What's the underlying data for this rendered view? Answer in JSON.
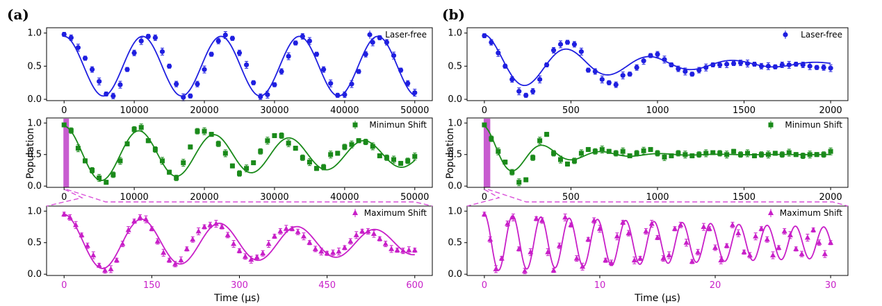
{
  "figure": {
    "panel_a": "(a)",
    "panel_b": "(b)",
    "ylabel": "Population",
    "xlabel": "Time (μs)"
  },
  "colors": {
    "blue": "#1f1fe0",
    "green": "#1a8a1a",
    "magenta": "#c81fc8",
    "highlight": "#c85cd0",
    "dash": "#d94fd9"
  },
  "chart_data": [
    {
      "type": "scatter",
      "id": "a1",
      "series": [
        {
          "name": "Laser-free",
          "marker": "circle",
          "color": "#1f1fe0",
          "x": [
            0,
            1000,
            2000,
            3000,
            4000,
            5000,
            6000,
            7000,
            8000,
            9000,
            10000,
            11000,
            12000,
            13000,
            14000,
            15000,
            16000,
            17000,
            18000,
            19000,
            20000,
            21000,
            22000,
            23000,
            24000,
            25000,
            26000,
            27000,
            28000,
            29000,
            30000,
            31000,
            32000,
            33000,
            34000,
            35000,
            36000,
            37000,
            38000,
            39000,
            40000,
            41000,
            42000,
            43000,
            44000,
            45000,
            46000,
            47000,
            48000,
            49000,
            50000
          ],
          "y": [
            0.98,
            0.93,
            0.78,
            0.62,
            0.45,
            0.27,
            0.08,
            0.05,
            0.22,
            0.45,
            0.7,
            0.88,
            0.95,
            0.93,
            0.72,
            0.5,
            0.23,
            0.03,
            0.05,
            0.23,
            0.45,
            0.68,
            0.88,
            0.97,
            0.92,
            0.7,
            0.52,
            0.25,
            0.04,
            0.07,
            0.22,
            0.42,
            0.65,
            0.85,
            0.95,
            0.88,
            0.68,
            0.45,
            0.24,
            0.06,
            0.07,
            0.23,
            0.42,
            0.68,
            0.86,
            0.93,
            0.86,
            0.66,
            0.44,
            0.24,
            0.1
          ]
        }
      ],
      "ylim": [
        -0.02,
        1.08
      ],
      "xlim": [
        -2500,
        52500
      ],
      "xticks": [
        0,
        10000,
        20000,
        30000,
        40000,
        50000
      ],
      "yticks": [
        0.0,
        0.5,
        1.0
      ],
      "ytick_labels": [
        "0.0",
        "0.5",
        "1.0"
      ],
      "xtick_labels": [
        "0",
        "10000",
        "20000",
        "30000",
        "40000",
        "50000"
      ],
      "fit": {
        "amp": 0.45,
        "offset": 0.5,
        "period": 11180,
        "decay": 0
      }
    },
    {
      "type": "scatter",
      "id": "a2",
      "series": [
        {
          "name": "Minimun Shift",
          "marker": "square",
          "color": "#1a8a1a",
          "x": [
            0,
            1000,
            2000,
            3000,
            4000,
            5000,
            6000,
            7000,
            8000,
            9000,
            10000,
            11000,
            12000,
            13000,
            14000,
            15000,
            16000,
            17000,
            18000,
            19000,
            20000,
            21000,
            22000,
            23000,
            24000,
            25000,
            26000,
            27000,
            28000,
            29000,
            30000,
            31000,
            32000,
            33000,
            34000,
            35000,
            36000,
            37000,
            38000,
            39000,
            40000,
            41000,
            42000,
            43000,
            44000,
            45000,
            46000,
            47000,
            48000,
            49000,
            50000
          ],
          "y": [
            0.97,
            0.88,
            0.6,
            0.4,
            0.25,
            0.13,
            0.06,
            0.18,
            0.4,
            0.67,
            0.9,
            0.93,
            0.72,
            0.58,
            0.4,
            0.22,
            0.13,
            0.37,
            0.62,
            0.87,
            0.87,
            0.82,
            0.67,
            0.52,
            0.32,
            0.2,
            0.28,
            0.37,
            0.55,
            0.72,
            0.8,
            0.8,
            0.68,
            0.6,
            0.45,
            0.38,
            0.28,
            0.3,
            0.5,
            0.52,
            0.62,
            0.66,
            0.72,
            0.7,
            0.63,
            0.48,
            0.45,
            0.42,
            0.36,
            0.4,
            0.47
          ]
        }
      ],
      "ylim": [
        -0.02,
        1.08
      ],
      "xlim": [
        -2500,
        52500
      ],
      "xticks": [
        0,
        10000,
        20000,
        30000,
        40000,
        50000
      ],
      "yticks": [
        0.0,
        0.5,
        1.0
      ],
      "ytick_labels": [
        "0.0",
        "0.5",
        "1.0"
      ],
      "xtick_labels": [
        "0",
        "10000",
        "20000",
        "30000",
        "40000",
        "50000"
      ],
      "fit": {
        "amp": 0.45,
        "offset": 0.5,
        "period": 10700,
        "decay": 60000
      }
    },
    {
      "type": "scatter",
      "id": "a3",
      "series": [
        {
          "name": "Maximum Shift",
          "marker": "triangle",
          "color": "#c81fc8",
          "x": [
            0,
            10,
            20,
            30,
            40,
            50,
            60,
            70,
            80,
            90,
            100,
            110,
            120,
            130,
            140,
            150,
            160,
            170,
            180,
            190,
            200,
            210,
            220,
            230,
            240,
            250,
            260,
            270,
            280,
            290,
            300,
            310,
            320,
            330,
            340,
            350,
            360,
            370,
            380,
            390,
            400,
            410,
            420,
            430,
            440,
            450,
            460,
            470,
            480,
            490,
            500,
            510,
            520,
            530,
            540,
            550,
            560,
            570,
            580,
            590,
            600
          ],
          "y": [
            0.95,
            0.9,
            0.78,
            0.62,
            0.45,
            0.3,
            0.14,
            0.06,
            0.08,
            0.22,
            0.48,
            0.7,
            0.84,
            0.9,
            0.87,
            0.72,
            0.52,
            0.34,
            0.22,
            0.16,
            0.22,
            0.4,
            0.55,
            0.68,
            0.75,
            0.78,
            0.8,
            0.75,
            0.62,
            0.48,
            0.37,
            0.28,
            0.23,
            0.27,
            0.33,
            0.48,
            0.6,
            0.68,
            0.72,
            0.72,
            0.67,
            0.6,
            0.5,
            0.4,
            0.36,
            0.33,
            0.34,
            0.36,
            0.42,
            0.52,
            0.62,
            0.68,
            0.68,
            0.64,
            0.56,
            0.48,
            0.4,
            0.38,
            0.37,
            0.38,
            0.38
          ]
        }
      ],
      "ylim": [
        -0.02,
        1.08
      ],
      "xlim": [
        -30,
        630
      ],
      "xticks": [
        0,
        150,
        300,
        450,
        600
      ],
      "yticks": [
        0.0,
        0.5,
        1.0
      ],
      "ytick_labels": [
        "0.0",
        "0.5",
        "1.0"
      ],
      "xtick_labels": [
        "0",
        "150",
        "300",
        "450",
        "600"
      ],
      "fit": {
        "amp": 0.45,
        "offset": 0.5,
        "period": 133,
        "decay": 700
      }
    },
    {
      "type": "scatter",
      "id": "b1",
      "series": [
        {
          "name": "Laser-free",
          "marker": "circle",
          "color": "#1f1fe0",
          "x": [
            0,
            40,
            80,
            120,
            160,
            200,
            240,
            280,
            320,
            360,
            400,
            440,
            480,
            520,
            560,
            600,
            640,
            680,
            720,
            760,
            800,
            840,
            880,
            920,
            960,
            1000,
            1040,
            1080,
            1120,
            1160,
            1200,
            1240,
            1280,
            1320,
            1360,
            1400,
            1440,
            1480,
            1520,
            1560,
            1600,
            1640,
            1680,
            1720,
            1760,
            1800,
            1840,
            1880,
            1920,
            1960,
            2000
          ],
          "y": [
            0.96,
            0.86,
            0.7,
            0.5,
            0.3,
            0.12,
            0.06,
            0.12,
            0.3,
            0.52,
            0.74,
            0.83,
            0.86,
            0.83,
            0.72,
            0.44,
            0.42,
            0.3,
            0.25,
            0.22,
            0.36,
            0.38,
            0.48,
            0.58,
            0.66,
            0.68,
            0.6,
            0.52,
            0.46,
            0.42,
            0.38,
            0.44,
            0.48,
            0.52,
            0.52,
            0.53,
            0.54,
            0.55,
            0.54,
            0.53,
            0.5,
            0.5,
            0.49,
            0.52,
            0.52,
            0.53,
            0.52,
            0.5,
            0.48,
            0.48,
            0.47
          ]
        }
      ],
      "ylim": [
        -0.02,
        1.08
      ],
      "xlim": [
        -100,
        2100
      ],
      "xticks": [
        0,
        500,
        1000,
        1500,
        2000
      ],
      "yticks": [
        0.0,
        0.5,
        1.0
      ],
      "ytick_labels": [
        "0.0",
        "0.5",
        "1.0"
      ],
      "xtick_labels": [
        "0",
        "500",
        "1000",
        "1500",
        "2000"
      ],
      "fit": {
        "amp": 0.45,
        "offset": 0.53,
        "period": 480,
        "decay": 700
      }
    },
    {
      "type": "scatter",
      "id": "b2",
      "series": [
        {
          "name": "Minimun Shift",
          "marker": "square",
          "color": "#1a8a1a",
          "x": [
            0,
            40,
            80,
            120,
            160,
            200,
            240,
            280,
            320,
            360,
            400,
            440,
            480,
            520,
            560,
            600,
            640,
            680,
            720,
            760,
            800,
            840,
            880,
            920,
            960,
            1000,
            1040,
            1080,
            1120,
            1160,
            1200,
            1240,
            1280,
            1320,
            1360,
            1400,
            1440,
            1480,
            1520,
            1560,
            1600,
            1640,
            1680,
            1720,
            1760,
            1800,
            1840,
            1880,
            1920,
            1960,
            2000
          ],
          "y": [
            0.97,
            0.75,
            0.55,
            0.38,
            0.22,
            0.06,
            0.1,
            0.45,
            0.72,
            0.82,
            0.52,
            0.42,
            0.35,
            0.4,
            0.52,
            0.58,
            0.55,
            0.58,
            0.55,
            0.52,
            0.55,
            0.48,
            0.52,
            0.56,
            0.58,
            0.52,
            0.46,
            0.48,
            0.52,
            0.5,
            0.48,
            0.5,
            0.52,
            0.53,
            0.52,
            0.5,
            0.55,
            0.5,
            0.52,
            0.48,
            0.5,
            0.5,
            0.52,
            0.5,
            0.53,
            0.5,
            0.48,
            0.5,
            0.5,
            0.5,
            0.55
          ]
        }
      ],
      "ylim": [
        -0.02,
        1.08
      ],
      "xlim": [
        -100,
        2100
      ],
      "xticks": [
        0,
        500,
        1000,
        1500,
        2000
      ],
      "yticks": [
        0.0,
        0.5,
        1.0
      ],
      "ytick_labels": [
        "0.0",
        "0.5",
        "1.0"
      ],
      "xtick_labels": [
        "0",
        "500",
        "1000",
        "1500",
        "2000"
      ],
      "fit": {
        "amp": 0.45,
        "offset": 0.5,
        "period": 340,
        "decay": 300
      }
    },
    {
      "type": "scatter",
      "id": "b3",
      "series": [
        {
          "name": "Maximum Shift",
          "marker": "triangle",
          "color": "#c81fc8",
          "x": [
            0,
            0.5,
            1,
            1.5,
            2,
            2.5,
            3,
            3.5,
            4,
            4.5,
            5,
            5.5,
            6,
            6.5,
            7,
            7.5,
            8,
            8.5,
            9,
            9.5,
            10,
            10.5,
            11,
            11.5,
            12,
            12.5,
            13,
            13.5,
            14,
            14.5,
            15,
            15.5,
            16,
            16.5,
            17,
            17.5,
            18,
            18.5,
            19,
            19.5,
            20,
            20.5,
            21,
            21.5,
            22,
            22.5,
            23,
            23.5,
            24,
            24.5,
            25,
            25.5,
            26,
            26.5,
            27,
            27.5,
            28,
            28.5,
            29,
            29.5,
            30
          ],
          "y": [
            0.95,
            0.55,
            0.08,
            0.25,
            0.8,
            0.9,
            0.4,
            0.05,
            0.35,
            0.88,
            0.85,
            0.35,
            0.06,
            0.45,
            0.9,
            0.78,
            0.25,
            0.12,
            0.55,
            0.85,
            0.72,
            0.22,
            0.18,
            0.6,
            0.82,
            0.65,
            0.22,
            0.25,
            0.68,
            0.8,
            0.58,
            0.25,
            0.3,
            0.72,
            0.78,
            0.5,
            0.2,
            0.35,
            0.75,
            0.72,
            0.42,
            0.22,
            0.45,
            0.78,
            0.65,
            0.35,
            0.3,
            0.6,
            0.72,
            0.55,
            0.3,
            0.42,
            0.68,
            0.62,
            0.4,
            0.32,
            0.58,
            0.7,
            0.5,
            0.32,
            0.5
          ]
        }
      ],
      "ylim": [
        -0.02,
        1.08
      ],
      "xlim": [
        -1.5,
        31.5
      ],
      "xticks": [
        0,
        10,
        20,
        30
      ],
      "yticks": [
        0.0,
        0.5,
        1.0
      ],
      "ytick_labels": [
        "0.0",
        "0.5",
        "1.0"
      ],
      "xtick_labels": [
        "0",
        "10",
        "20",
        "30"
      ],
      "fit": {
        "amp": 0.45,
        "offset": 0.5,
        "period": 2.45,
        "decay": 50
      }
    }
  ]
}
